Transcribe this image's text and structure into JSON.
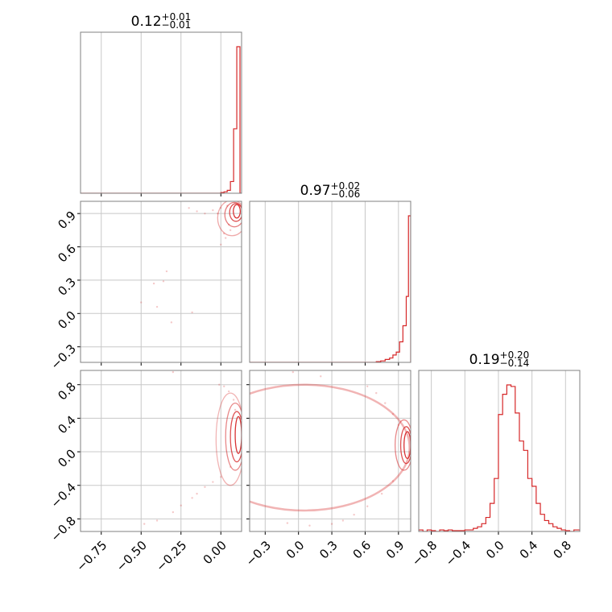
{
  "chart_data": {
    "type": "corner",
    "line_color": "#d62728",
    "grid": true,
    "parameters": [
      {
        "title": {
          "value": "0.12",
          "plus": "+0.01",
          "minus": "−0.01"
        },
        "range": [
          -0.88,
          0.13
        ],
        "ticks": [
          -0.75,
          -0.5,
          -0.25,
          0.0
        ],
        "tick_labels": [
          "−0.75",
          "−0.50",
          "−0.25",
          "0.00"
        ]
      },
      {
        "title": {
          "value": "0.97",
          "plus": "+0.02",
          "minus": "−0.06"
        },
        "range": [
          -0.44,
          1.01
        ],
        "ticks": [
          -0.3,
          0.0,
          0.3,
          0.6,
          0.9
        ],
        "tick_labels": [
          "−0.3",
          "0.0",
          "0.3",
          "0.6",
          "0.9"
        ]
      },
      {
        "title": {
          "value": "0.19",
          "plus": "+0.20",
          "minus": "−0.14"
        },
        "range": [
          -0.95,
          0.97
        ],
        "ticks": [
          -0.8,
          -0.4,
          0.0,
          0.4,
          0.8
        ],
        "tick_labels": [
          "−0.8",
          "−0.4",
          "0.0",
          "0.4",
          "0.8"
        ]
      }
    ],
    "histograms": [
      {
        "param": 0,
        "bin_edges": [
          -0.88,
          0.0,
          0.02,
          0.04,
          0.06,
          0.08,
          0.1,
          0.11,
          0.12,
          0.13
        ],
        "counts": [
          0.0,
          0.005,
          0.01,
          0.02,
          0.08,
          0.44,
          1.0,
          1.0,
          0.0
        ]
      },
      {
        "param": 1,
        "bin_edges": [
          -0.44,
          0.7,
          0.74,
          0.78,
          0.82,
          0.85,
          0.88,
          0.91,
          0.94,
          0.97,
          0.99,
          1.01
        ],
        "counts": [
          0.0,
          0.005,
          0.01,
          0.02,
          0.03,
          0.05,
          0.07,
          0.14,
          0.25,
          0.45,
          1.0
        ]
      },
      {
        "param": 2,
        "bin_edges": [
          -0.95,
          -0.9,
          -0.85,
          -0.8,
          -0.75,
          -0.7,
          -0.65,
          -0.6,
          -0.55,
          -0.5,
          -0.45,
          -0.4,
          -0.35,
          -0.3,
          -0.25,
          -0.2,
          -0.15,
          -0.1,
          -0.05,
          0.0,
          0.05,
          0.1,
          0.15,
          0.2,
          0.25,
          0.3,
          0.35,
          0.4,
          0.45,
          0.5,
          0.55,
          0.6,
          0.65,
          0.7,
          0.75,
          0.8,
          0.85,
          0.9,
          0.97
        ],
        "counts": [
          0.01,
          0.0,
          0.01,
          0.005,
          0.0,
          0.01,
          0.005,
          0.01,
          0.005,
          0.005,
          0.005,
          0.01,
          0.01,
          0.02,
          0.03,
          0.05,
          0.09,
          0.18,
          0.34,
          0.75,
          0.88,
          0.94,
          0.93,
          0.76,
          0.58,
          0.52,
          0.34,
          0.29,
          0.18,
          0.11,
          0.07,
          0.05,
          0.03,
          0.02,
          0.01,
          0.005,
          0.0,
          0.01
        ]
      }
    ],
    "pairs": [
      {
        "x_param": 0,
        "y_param": 1,
        "contours": [
          {
            "c": [
              0.1,
              0.92
            ],
            "r": [
              0.022,
              0.06
            ],
            "opacity": 0.95
          },
          {
            "c": [
              0.095,
              0.91
            ],
            "r": [
              0.04,
              0.08
            ],
            "opacity": 0.8
          },
          {
            "c": [
              0.085,
              0.89
            ],
            "r": [
              0.06,
              0.11
            ],
            "opacity": 0.6
          },
          {
            "c": [
              0.07,
              0.86
            ],
            "r": [
              0.09,
              0.16
            ],
            "opacity": 0.4
          }
        ],
        "points": [
          [
            0.04,
            0.97
          ],
          [
            0.0,
            0.95
          ],
          [
            -0.05,
            0.93
          ],
          [
            0.02,
            0.72
          ],
          [
            0.0,
            0.62
          ],
          [
            0.03,
            0.68
          ],
          [
            0.05,
            0.8
          ],
          [
            -0.1,
            0.9
          ],
          [
            -0.34,
            0.38
          ],
          [
            -0.36,
            0.29
          ],
          [
            -0.42,
            0.27
          ],
          [
            -0.5,
            0.1
          ],
          [
            -0.4,
            0.06
          ],
          [
            -0.31,
            -0.08
          ],
          [
            -0.18,
            0.01
          ],
          [
            -0.2,
            0.95
          ],
          [
            0.06,
            0.75
          ],
          [
            -0.02,
            0.9
          ],
          [
            -0.15,
            0.92
          ]
        ]
      },
      {
        "x_param": 0,
        "y_param": 2,
        "contours": [
          {
            "c": [
              0.11,
              0.2
            ],
            "r": [
              0.02,
              0.22
            ],
            "opacity": 0.95
          },
          {
            "c": [
              0.1,
              0.18
            ],
            "r": [
              0.04,
              0.3
            ],
            "opacity": 0.8
          },
          {
            "c": [
              0.09,
              0.18
            ],
            "r": [
              0.06,
              0.4
            ],
            "opacity": 0.55
          },
          {
            "c": [
              0.06,
              0.15
            ],
            "r": [
              0.09,
              0.55
            ],
            "opacity": 0.35
          }
        ],
        "points": [
          [
            0.02,
            0.78
          ],
          [
            0.05,
            0.72
          ],
          [
            0.08,
            0.62
          ],
          [
            0.06,
            -0.18
          ],
          [
            0.0,
            -0.3
          ],
          [
            -0.05,
            -0.36
          ],
          [
            -0.1,
            -0.42
          ],
          [
            -0.18,
            -0.55
          ],
          [
            -0.25,
            -0.64
          ],
          [
            -0.3,
            -0.72
          ],
          [
            -0.4,
            -0.82
          ],
          [
            -0.48,
            -0.86
          ],
          [
            -0.3,
            0.95
          ],
          [
            0.09,
            0.5
          ],
          [
            -0.01,
            0.8
          ],
          [
            -0.15,
            -0.5
          ]
        ]
      },
      {
        "x_param": 1,
        "y_param": 2,
        "contours": [
          {
            "c": [
              0.98,
              0.08
            ],
            "r": [
              0.03,
              0.16
            ],
            "opacity": 0.95
          },
          {
            "c": [
              0.97,
              0.08
            ],
            "r": [
              0.05,
              0.22
            ],
            "opacity": 0.8
          },
          {
            "c": [
              0.95,
              0.08
            ],
            "r": [
              0.08,
              0.3
            ],
            "opacity": 0.55
          }
        ],
        "arc": {
          "c": [
            0.05,
            0.05
          ],
          "r": [
            0.95,
            0.75
          ],
          "opacity": 0.35
        },
        "points": [
          [
            0.62,
            0.78
          ],
          [
            0.7,
            0.7
          ],
          [
            0.78,
            0.58
          ],
          [
            0.85,
            0.45
          ],
          [
            0.9,
            0.32
          ],
          [
            0.85,
            -0.35
          ],
          [
            0.75,
            -0.5
          ],
          [
            0.62,
            -0.65
          ],
          [
            0.5,
            -0.75
          ],
          [
            0.4,
            -0.82
          ],
          [
            0.3,
            -0.86
          ],
          [
            0.1,
            -0.88
          ],
          [
            -0.1,
            -0.85
          ],
          [
            -0.05,
            0.95
          ],
          [
            0.2,
            0.9
          ]
        ]
      }
    ]
  }
}
